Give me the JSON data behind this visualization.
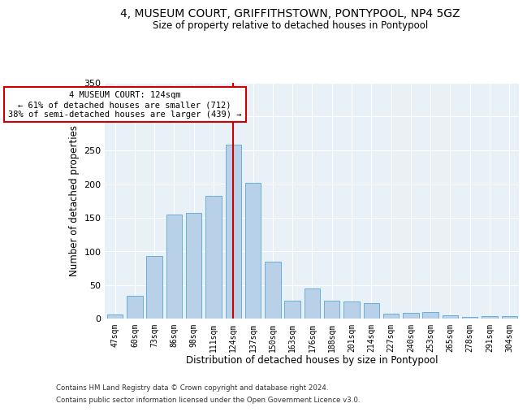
{
  "title": "4, MUSEUM COURT, GRIFFITHSTOWN, PONTYPOOL, NP4 5GZ",
  "subtitle": "Size of property relative to detached houses in Pontypool",
  "xlabel": "Distribution of detached houses by size in Pontypool",
  "ylabel": "Number of detached properties",
  "categories": [
    "47sqm",
    "60sqm",
    "73sqm",
    "86sqm",
    "98sqm",
    "111sqm",
    "124sqm",
    "137sqm",
    "150sqm",
    "163sqm",
    "176sqm",
    "188sqm",
    "201sqm",
    "214sqm",
    "227sqm",
    "240sqm",
    "253sqm",
    "265sqm",
    "278sqm",
    "291sqm",
    "304sqm"
  ],
  "values": [
    6,
    34,
    93,
    155,
    157,
    182,
    258,
    202,
    85,
    27,
    45,
    26,
    25,
    23,
    7,
    9,
    10,
    5,
    3,
    4,
    4
  ],
  "bar_color": "#b8d0e8",
  "bar_edgecolor": "#6aaed6",
  "highlight_index": 6,
  "highlight_color": "#cc0000",
  "annotation_title": "4 MUSEUM COURT: 124sqm",
  "annotation_line1": "← 61% of detached houses are smaller (712)",
  "annotation_line2": "38% of semi-detached houses are larger (439) →",
  "annotation_box_color": "#ffffff",
  "annotation_box_edgecolor": "#cc0000",
  "ylim": [
    0,
    350
  ],
  "yticks": [
    0,
    50,
    100,
    150,
    200,
    250,
    300,
    350
  ],
  "background_color": "#e8f0f8",
  "footer_line1": "Contains HM Land Registry data © Crown copyright and database right 2024.",
  "footer_line2": "Contains public sector information licensed under the Open Government Licence v3.0."
}
